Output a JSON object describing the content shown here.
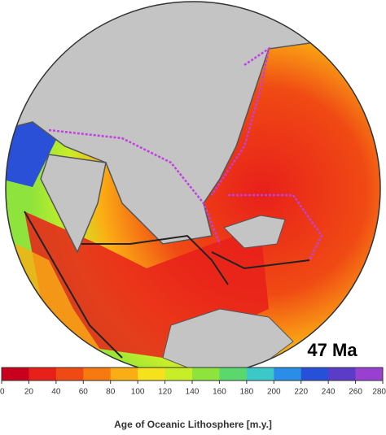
{
  "map": {
    "title": "47 Ma"
  },
  "colorbar": {
    "label": "Age of Oceanic Lithosphere [m.y.]",
    "lim": [
      0,
      280
    ],
    "ticks": [
      0,
      20,
      40,
      60,
      80,
      100,
      120,
      140,
      160,
      180,
      200,
      220,
      240,
      260,
      280
    ],
    "colors": [
      "#c8001e",
      "#e8201a",
      "#f04a14",
      "#f77a10",
      "#fbae14",
      "#f5e21c",
      "#c8ee28",
      "#8ee43c",
      "#5ad86e",
      "#3cc8c8",
      "#2a8ee8",
      "#2650d8",
      "#5a3cc8",
      "#9a40d0"
    ]
  }
}
